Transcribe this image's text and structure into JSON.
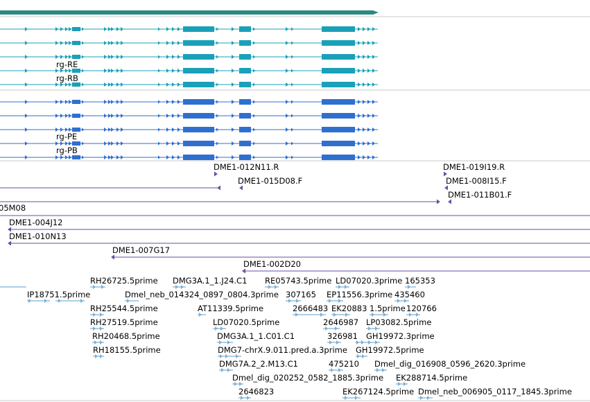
{
  "colors": {
    "gene_bar": "#2a8a86",
    "transcript_rna": "#1aa0b8",
    "transcript_protein": "#2f6fd0",
    "clone": "#6a4ea6",
    "est": "#7ab0d8",
    "separator": "#c8c8c8"
  },
  "tracks": {
    "transcripts": {
      "labels": [
        "rg-RE",
        "rg-RB"
      ]
    },
    "proteins": {
      "labels": [
        "rg-PE",
        "rg-PB"
      ]
    },
    "clones": {
      "labels": [
        "DME1-012N11.R",
        "DME1-019I19.R",
        "DME1-015D08.F",
        "DME1-008I15.F",
        "DME1-011B01.F",
        "05M08",
        "DME1-004J12",
        "DME1-010N13",
        "DME1-007G17",
        "DME1-002D20"
      ]
    },
    "ests": {
      "labels": [
        "RH26725.5prime",
        "DMG3A.1_1.J24.C1",
        "RE05743.5prime",
        "LD07020.3prime",
        "165353",
        "IP18751.5prime",
        "Dmel_neb_014324_0897_0804.3prime",
        "307165",
        "EP11556.3prime",
        "435460",
        "RH25544.5prime",
        "AT11339.5prime",
        "2666483",
        "EK20883",
        "1.5prime",
        "120766",
        "RH27519.5prime",
        "LD07020.5prime",
        "2646987",
        "LP03082.5prime",
        "RH20468.5prime",
        "DMG3A.1_1.C01.C1",
        "326981",
        "GH19972.3prime",
        "RH18155.5prime",
        "DMG7-chrX.9.011.pred.a.3prime",
        "GH19972.5prime",
        "DMG7A.2_2.M13.C1",
        "475210",
        "Dmel_dig_016908_0596_2620.3prime",
        "Dmel_dig_020252_0582_1885.3prime",
        "EK288714.5prime",
        "2646823",
        "EK267124.5prime",
        "Dmel_neb_006905_0117_1845.3prime"
      ]
    }
  }
}
